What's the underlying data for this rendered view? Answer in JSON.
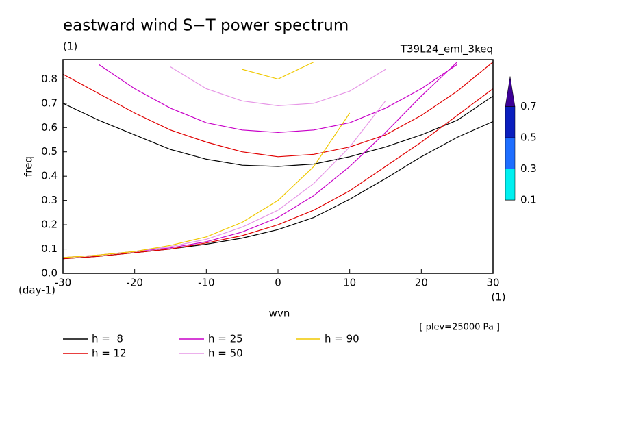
{
  "chart_data": {
    "type": "line",
    "title": "eastward wind S−T power spectrum",
    "subtitle": "(1)",
    "run_label": "T39L24_eml_3keq",
    "x_label": "wvn",
    "y_label": "freq",
    "x_unit": "(1)",
    "y_unit": "(day-1)",
    "annotation": "[ plev=25000 Pa ]",
    "x": [
      -30,
      -25,
      -20,
      -15,
      -10,
      -5,
      0,
      5,
      10,
      15,
      20,
      25,
      30
    ],
    "xlim": [
      -30,
      30
    ],
    "xticks": [
      -30,
      -20,
      -10,
      0,
      10,
      20,
      30
    ],
    "ylim": [
      0,
      0.88
    ],
    "yticks": [
      {
        "value": 0,
        "label": "0.0"
      },
      0.1,
      0.2,
      0.3,
      0.4,
      0.5,
      0.6,
      0.7,
      0.8
    ],
    "series": [
      {
        "name": "h =  8",
        "color": "#000000",
        "branches": [
          [
            0.06,
            0.07,
            0.085,
            0.1,
            0.12,
            0.145,
            0.18,
            0.23,
            0.305,
            0.39,
            0.48,
            0.56,
            0.625
          ],
          [
            0.7,
            0.63,
            0.57,
            0.51,
            0.47,
            0.445,
            0.44,
            0.45,
            0.48,
            0.52,
            0.57,
            0.63,
            0.73
          ]
        ]
      },
      {
        "name": "h = 12",
        "color": "#e00000",
        "branches": [
          [
            0.06,
            0.07,
            0.085,
            0.1,
            0.125,
            0.155,
            0.2,
            0.26,
            0.34,
            0.44,
            0.54,
            0.65,
            0.76
          ],
          [
            0.82,
            0.74,
            0.66,
            0.59,
            0.54,
            0.5,
            0.48,
            0.49,
            0.52,
            0.57,
            0.65,
            0.75,
            0.87
          ]
        ]
      },
      {
        "name": "h = 25",
        "color": "#c800c8",
        "branches": [
          [
            0.065,
            0.075,
            0.09,
            0.105,
            0.13,
            0.17,
            0.23,
            0.32,
            0.44,
            0.58,
            0.73,
            0.87,
            null
          ],
          [
            null,
            0.86,
            0.76,
            0.68,
            0.62,
            0.59,
            0.58,
            0.59,
            0.62,
            0.68,
            0.76,
            0.86,
            null
          ]
        ]
      },
      {
        "name": "h = 50",
        "color": "#e696e6",
        "branches": [
          [
            0.065,
            0.075,
            0.09,
            0.11,
            0.14,
            0.19,
            0.26,
            0.37,
            0.52,
            0.71,
            null,
            null,
            null
          ],
          [
            null,
            null,
            null,
            0.85,
            0.76,
            0.71,
            0.69,
            0.7,
            0.75,
            0.84,
            null,
            null,
            null
          ]
        ]
      },
      {
        "name": "h = 90",
        "color": "#f0c800",
        "branches": [
          [
            0.065,
            0.075,
            0.09,
            0.115,
            0.15,
            0.21,
            0.3,
            0.44,
            0.66,
            null,
            null,
            null,
            null
          ],
          [
            null,
            null,
            null,
            null,
            null,
            0.84,
            0.8,
            0.87,
            null,
            null,
            null,
            null,
            null
          ]
        ]
      }
    ],
    "colorbar": {
      "levels": [
        0.1,
        0.3,
        0.5,
        0.7
      ],
      "colors": [
        "#00f0f0",
        "#1e6eff",
        "#0a1ebe",
        "#3c0096"
      ]
    }
  }
}
